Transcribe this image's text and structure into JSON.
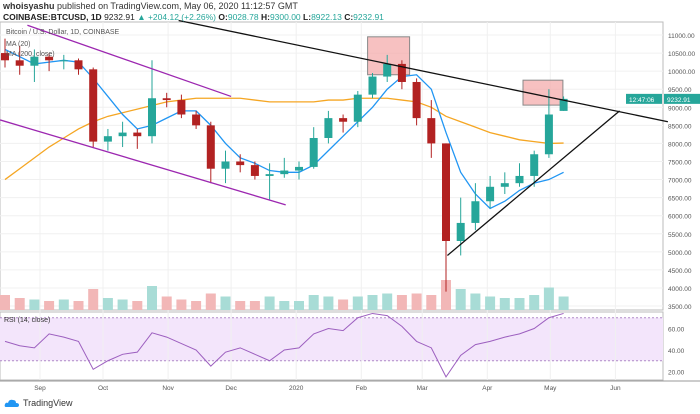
{
  "header": {
    "author": "whoisyashu",
    "published": "published on TradingView.com, May 06, 2020 11:12:57 GMT",
    "symbol": "COINBASE:BTCUSD, 1D",
    "last": "9232.91",
    "change": "▲ +204.12 (+2.26%)",
    "o_label": "O:",
    "o": "9028.78",
    "h_label": "H:",
    "h": "9300.00",
    "l_label": "L:",
    "l": "8922.13",
    "c_label": "C:",
    "c": "9232.91"
  },
  "legend": {
    "title": "Bitcoin / U.S. Dollar, 1D, COINBASE",
    "ma20": "MA (20)",
    "ma200": "MA (200, close)",
    "close": "close"
  },
  "price_tag": "9232.91",
  "countdown": "12:47:06",
  "footer": {
    "brand": "TradingView"
  },
  "colors": {
    "up": "#26a69a",
    "down": "#b22222",
    "ma20": "#2196f3",
    "ma200": "#f5a623",
    "channel": "#9c27b0",
    "trend": "#111111",
    "rsi": "#9c5fbf",
    "box": "#f4a6a6"
  },
  "chart_data": {
    "type": "candlestick",
    "interval": "weekly-approx",
    "ylim": [
      3500,
      11000
    ],
    "yticks": [
      3500,
      4000,
      4500,
      5000,
      5500,
      6000,
      6500,
      7000,
      7500,
      8000,
      8500,
      9000,
      9500,
      10000,
      10500,
      11000
    ],
    "xticks": [
      {
        "label": "Sep",
        "date": "2019-09-01"
      },
      {
        "label": "Oct",
        "date": "2019-10-01"
      },
      {
        "label": "Nov",
        "date": "2019-11-01"
      },
      {
        "label": "Dec",
        "date": "2019-12-01"
      },
      {
        "label": "2020",
        "date": "2020-01-01"
      },
      {
        "label": "Feb",
        "date": "2020-02-01"
      },
      {
        "label": "Mar",
        "date": "2020-03-01"
      },
      {
        "label": "Apr",
        "date": "2020-04-01"
      },
      {
        "label": "May",
        "date": "2020-05-01"
      },
      {
        "label": "Jun",
        "date": "2020-06-01"
      }
    ],
    "dates": [
      "2019-08-12",
      "2019-08-19",
      "2019-08-26",
      "2019-09-02",
      "2019-09-09",
      "2019-09-16",
      "2019-09-23",
      "2019-09-30",
      "2019-10-07",
      "2019-10-14",
      "2019-10-21",
      "2019-10-28",
      "2019-11-04",
      "2019-11-11",
      "2019-11-18",
      "2019-11-25",
      "2019-12-02",
      "2019-12-09",
      "2019-12-16",
      "2019-12-23",
      "2019-12-30",
      "2020-01-06",
      "2020-01-13",
      "2020-01-20",
      "2020-01-27",
      "2020-02-03",
      "2020-02-10",
      "2020-02-17",
      "2020-02-24",
      "2020-03-02",
      "2020-03-09",
      "2020-03-16",
      "2020-03-23",
      "2020-03-30",
      "2020-04-06",
      "2020-04-13",
      "2020-04-20",
      "2020-04-27",
      "2020-05-04"
    ],
    "close": [
      10300,
      10150,
      10400,
      10300,
      10300,
      10050,
      8050,
      8200,
      8300,
      8200,
      9250,
      9200,
      8800,
      8500,
      7300,
      7500,
      7400,
      7100,
      7150,
      7250,
      7350,
      8150,
      8700,
      8600,
      9350,
      9850,
      10200,
      9700,
      8700,
      8000,
      5300,
      5800,
      6400,
      6800,
      6900,
      7100,
      7700,
      8800,
      9232.91
    ],
    "open": [
      10500,
      10300,
      10150,
      10400,
      10300,
      10300,
      10050,
      8050,
      8200,
      8300,
      8200,
      9250,
      9200,
      8800,
      8500,
      7300,
      7500,
      7400,
      7100,
      7150,
      7250,
      7350,
      8150,
      8700,
      8600,
      9350,
      9850,
      10200,
      9700,
      8700,
      8000,
      5300,
      5800,
      6400,
      6800,
      6900,
      7100,
      7700,
      8900
    ],
    "high": [
      10900,
      10700,
      10600,
      10500,
      10450,
      10350,
      10100,
      8400,
      8600,
      8400,
      10300,
      9400,
      9350,
      8900,
      8600,
      7800,
      7700,
      7500,
      7450,
      7600,
      7500,
      8450,
      8900,
      8800,
      9450,
      9950,
      10450,
      10300,
      9800,
      9200,
      8000,
      6500,
      6900,
      7100,
      7200,
      7450,
      7800,
      9500,
      9300
    ],
    "low": [
      10100,
      9900,
      9700,
      10000,
      10050,
      9900,
      7900,
      7800,
      7900,
      7850,
      8000,
      9000,
      8700,
      8400,
      6900,
      6900,
      7200,
      7000,
      6450,
      7050,
      7000,
      7300,
      8000,
      8300,
      8450,
      9250,
      9700,
      9500,
      8500,
      7600,
      3900,
      4900,
      5600,
      6200,
      6600,
      6800,
      6800,
      7600,
      8900
    ],
    "volume": [
      0.5,
      0.4,
      0.35,
      0.3,
      0.35,
      0.3,
      0.7,
      0.4,
      0.35,
      0.3,
      0.8,
      0.45,
      0.35,
      0.3,
      0.55,
      0.45,
      0.3,
      0.3,
      0.45,
      0.3,
      0.3,
      0.5,
      0.45,
      0.35,
      0.45,
      0.5,
      0.55,
      0.5,
      0.55,
      0.5,
      1.0,
      0.7,
      0.55,
      0.45,
      0.4,
      0.4,
      0.5,
      0.75,
      0.45
    ],
    "ma20": [
      10600,
      10400,
      10200,
      10250,
      10300,
      10250,
      9800,
      9300,
      8800,
      8400,
      8500,
      8700,
      8900,
      8900,
      8500,
      8000,
      7600,
      7450,
      7250,
      7200,
      7200,
      7400,
      7800,
      8200,
      8600,
      9000,
      9500,
      9850,
      9900,
      9500,
      8300,
      7200,
      6600,
      6200,
      6400,
      6700,
      6900,
      7000,
      7200
    ],
    "ma200": [
      7000,
      7300,
      7600,
      7900,
      8150,
      8400,
      8600,
      8750,
      8850,
      8950,
      9050,
      9150,
      9200,
      9250,
      9250,
      9250,
      9250,
      9200,
      9150,
      9150,
      9150,
      9150,
      9200,
      9200,
      9250,
      9250,
      9250,
      9200,
      9150,
      9000,
      8750,
      8600,
      8450,
      8300,
      8200,
      8100,
      8050,
      8000,
      8010
    ],
    "rsi": {
      "label": "RSI (14, close)",
      "ylim": [
        10,
        80
      ],
      "yticks": [
        20,
        40,
        60
      ],
      "bands": [
        30,
        70
      ],
      "values": [
        48,
        44,
        42,
        55,
        52,
        48,
        22,
        30,
        36,
        38,
        56,
        52,
        46,
        40,
        25,
        38,
        42,
        36,
        30,
        40,
        42,
        55,
        60,
        58,
        70,
        74,
        72,
        62,
        48,
        42,
        15,
        35,
        45,
        48,
        52,
        55,
        60,
        70,
        74
      ]
    },
    "trendlines": [
      {
        "kind": "resistance",
        "p1": [
          "2019-11-06",
          11400
        ],
        "p2": [
          "2020-06-26",
          8600
        ]
      },
      {
        "kind": "support",
        "p1": [
          "2020-03-13",
          4900
        ],
        "p2": [
          "2020-06-03",
          8900
        ]
      },
      {
        "kind": "channel-upper",
        "p1": [
          "2019-08-26",
          11270
        ],
        "p2": [
          "2019-12-01",
          9300
        ]
      },
      {
        "kind": "channel-lower",
        "p1": [
          "2019-08-13",
          8650
        ],
        "p2": [
          "2019-12-27",
          6300
        ]
      }
    ],
    "boxes": [
      {
        "from": "2020-02-04",
        "to": "2020-02-24",
        "top": 10950,
        "bottom": 9900
      },
      {
        "from": "2020-04-18",
        "to": "2020-05-07",
        "top": 9750,
        "bottom": 9060
      }
    ]
  }
}
